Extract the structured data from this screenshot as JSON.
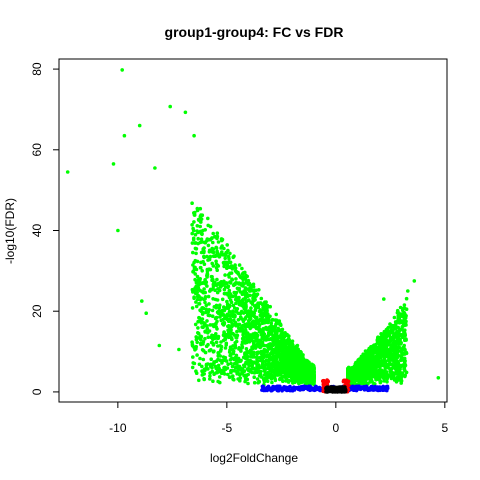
{
  "chart_data": {
    "type": "scatter",
    "title": "group1-group4: FC vs FDR",
    "xlabel": "log2FoldChange",
    "ylabel": "-log10(FDR)",
    "xlim": [
      -12.7,
      5.1
    ],
    "ylim": [
      -2.5,
      82.5
    ],
    "xticks": [
      -10,
      -5,
      0,
      5
    ],
    "yticks": [
      0,
      20,
      40,
      60,
      80
    ],
    "grid": false,
    "legend": "none",
    "colors": {
      "significant_fc": "#00ff00",
      "significant_fdr_only": "#0000ff",
      "fc_only": "#ff0000",
      "not_significant": "#000000"
    },
    "highlighted_points": [
      {
        "x": -12.3,
        "y": 54.5
      },
      {
        "x": -9.8,
        "y": 79.8
      },
      {
        "x": -10.0,
        "y": 40.0
      },
      {
        "x": -9.7,
        "y": 63.5
      },
      {
        "x": -9.0,
        "y": 66.0
      },
      {
        "x": -7.6,
        "y": 70.7
      },
      {
        "x": -6.9,
        "y": 69.3
      },
      {
        "x": -6.5,
        "y": 63.5
      },
      {
        "x": -10.2,
        "y": 56.5
      },
      {
        "x": -8.3,
        "y": 55.5
      },
      {
        "x": -8.7,
        "y": 19.5
      },
      {
        "x": -8.1,
        "y": 11.5
      },
      {
        "x": -8.9,
        "y": 22.5
      },
      {
        "x": -7.2,
        "y": 10.5
      },
      {
        "x": -6.2,
        "y": 13.0
      },
      {
        "x": 3.6,
        "y": 27.5
      },
      {
        "x": 4.7,
        "y": 3.5
      },
      {
        "x": 3.3,
        "y": 25.0
      },
      {
        "x": 2.2,
        "y": 23.0
      }
    ],
    "clusters": [
      {
        "series": "significant_fc",
        "shape": "left_arm",
        "x_range": [
          -7.5,
          -1.0
        ],
        "y_range": [
          1.5,
          40
        ]
      },
      {
        "series": "significant_fc",
        "shape": "right_arm",
        "x_range": [
          0.5,
          3.5
        ],
        "y_range": [
          1.5,
          23
        ]
      },
      {
        "series": "significant_fdr_only",
        "x_range": [
          -3.5,
          2.5
        ],
        "y_range": [
          0.2,
          1.5
        ]
      },
      {
        "series": "fc_only",
        "x_range": [
          -0.6,
          0.6
        ],
        "y_range": [
          0,
          3
        ]
      },
      {
        "series": "not_significant",
        "x_range": [
          -0.5,
          0.5
        ],
        "y_range": [
          0,
          1.3
        ]
      }
    ]
  }
}
